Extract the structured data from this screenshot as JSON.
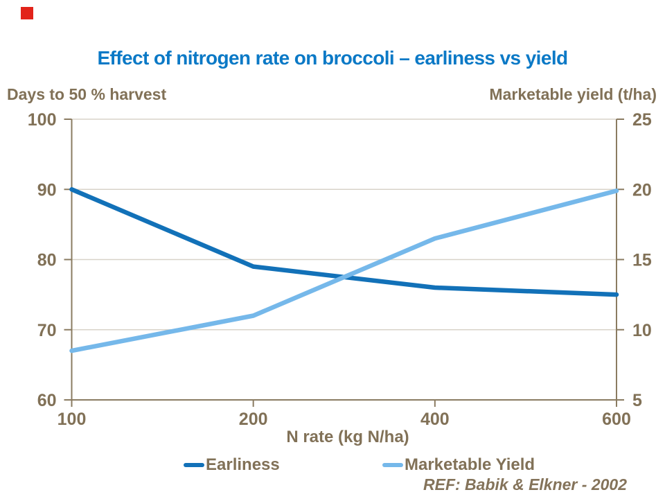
{
  "slide": {
    "title": "Effect of nitrogen rate on broccoli – earliness vs yield",
    "accent_square_color": "#E2231A"
  },
  "footer": {
    "ref": "REF: Babik & Elkner - 2002"
  },
  "colors": {
    "title_blue": "#0B79C6",
    "earliness_blue": "#1271B8",
    "yield_light_blue": "#75B8EA",
    "text_brown": "#817157",
    "axis_brown": "#8A7B61",
    "gridline": "#D8D3C8",
    "accent_red": "#E2231A"
  },
  "chart_data": {
    "type": "line",
    "title": "Effect of nitrogen rate on broccoli – earliness vs yield",
    "x_categories": [
      "100",
      "200",
      "400",
      "600"
    ],
    "xlabel": "N rate (kg N/ha)",
    "grid": true,
    "legend_position": "bottom",
    "left_axis": {
      "label": "Days to 50 % harvest",
      "range": [
        60,
        100
      ],
      "ticks": [
        100,
        90,
        80,
        70,
        60
      ]
    },
    "right_axis": {
      "label": "Marketable yield (t/ha)",
      "range": [
        5,
        25
      ],
      "ticks": [
        25,
        20,
        15,
        10,
        5
      ]
    },
    "series": [
      {
        "name": "Earliness",
        "axis": "left",
        "color": "#1271B8",
        "values": [
          90,
          79,
          76,
          75
        ]
      },
      {
        "name": "Marketable Yield",
        "axis": "right",
        "color": "#75B8EA",
        "values": [
          8.5,
          11,
          16.5,
          19.9
        ]
      }
    ]
  }
}
